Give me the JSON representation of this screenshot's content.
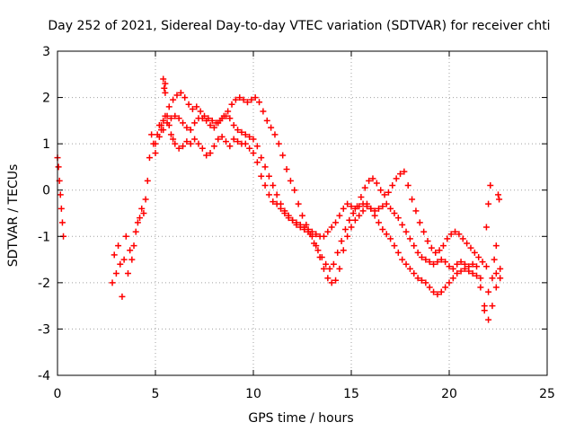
{
  "chart_data": {
    "type": "scatter",
    "title": "Day 252 of 2021, Sidereal Day-to-day VTEC variation (SDTVAR) for receiver chti",
    "xlabel": "GPS time / hours",
    "ylabel": "SDTVAR / TECUs",
    "xlim": [
      0,
      25
    ],
    "ylim": [
      -4,
      3
    ],
    "xticks": [
      0,
      5,
      10,
      15,
      20,
      25
    ],
    "yticks": [
      -4,
      -3,
      -2,
      -1,
      0,
      1,
      2,
      3
    ],
    "grid": true,
    "marker": "+",
    "colors": {
      "points": "#ff0000",
      "grid": "#a0a0a0",
      "axis": "#000000"
    },
    "series": [
      {
        "name": "chti",
        "x": [
          0.0,
          0.05,
          0.1,
          0.15,
          0.2,
          0.25,
          0.3,
          2.8,
          2.9,
          3.0,
          3.1,
          3.2,
          3.3,
          3.4,
          3.5,
          3.6,
          3.7,
          3.8,
          3.9,
          4.0,
          4.1,
          4.2,
          4.3,
          4.4,
          4.5,
          4.6,
          4.7,
          4.8,
          4.9,
          5.0,
          5.1,
          5.2,
          5.3,
          5.4,
          5.5,
          5.6,
          5.7,
          5.8,
          5.9,
          6.0,
          6.2,
          6.4,
          6.6,
          6.8,
          7.0,
          7.2,
          7.4,
          7.6,
          7.8,
          8.0,
          8.2,
          8.4,
          8.6,
          8.8,
          9.0,
          9.2,
          9.4,
          9.6,
          9.8,
          10.0,
          10.2,
          10.4,
          10.6,
          10.8,
          11.0,
          11.2,
          11.4,
          11.6,
          11.8,
          12.0,
          12.2,
          12.4,
          12.6,
          12.8,
          13.0,
          13.2,
          13.4,
          13.6,
          13.8,
          14.0,
          14.2,
          14.4,
          14.6,
          14.8,
          15.0,
          15.2,
          15.4,
          15.6,
          15.8,
          16.0,
          16.2,
          16.4,
          16.6,
          16.8,
          17.0,
          17.2,
          17.4,
          17.6,
          17.8,
          18.0,
          18.2,
          18.4,
          18.6,
          18.8,
          19.0,
          19.2,
          19.4,
          19.6,
          19.8,
          20.0,
          20.2,
          20.4,
          20.6,
          20.8,
          21.0,
          21.2,
          21.4,
          21.6,
          21.8,
          22.0,
          22.2,
          22.4,
          22.6,
          5.0,
          5.2,
          5.4,
          5.6,
          5.8,
          6.0,
          6.2,
          6.4,
          6.6,
          6.8,
          7.0,
          7.2,
          7.4,
          7.6,
          7.8,
          8.0,
          8.2,
          8.4,
          8.6,
          8.8,
          9.0,
          9.2,
          9.4,
          9.6,
          9.8,
          10.0,
          10.2,
          10.4,
          10.6,
          10.8,
          11.0,
          11.2,
          11.4,
          11.6,
          11.8,
          12.0,
          12.2,
          12.4,
          12.6,
          12.8,
          13.0,
          13.2,
          13.4,
          13.6,
          13.8,
          14.0,
          14.2,
          14.4,
          14.6,
          14.8,
          15.0,
          15.2,
          15.4,
          15.6,
          15.8,
          16.0,
          16.2,
          16.4,
          16.6,
          16.8,
          17.0,
          17.2,
          17.4,
          17.6,
          17.8,
          18.0,
          18.2,
          18.4,
          18.6,
          18.8,
          19.0,
          19.2,
          19.4,
          19.6,
          19.8,
          20.0,
          20.2,
          20.4,
          20.6,
          20.8,
          21.0,
          21.2,
          21.4,
          21.6,
          21.8,
          22.0,
          22.2,
          22.4,
          22.6,
          5.3,
          5.5,
          5.7,
          5.9,
          6.1,
          6.3,
          6.5,
          6.7,
          6.9,
          7.1,
          7.3,
          7.5,
          7.7,
          7.9,
          8.1,
          8.3,
          8.5,
          8.7,
          8.9,
          9.1,
          9.3,
          9.5,
          9.7,
          9.9,
          10.1,
          10.3,
          10.5,
          10.7,
          10.9,
          11.1,
          11.3,
          11.5,
          11.7,
          11.9,
          12.1,
          12.3,
          12.5,
          12.7,
          12.9,
          13.1,
          13.3,
          13.5,
          13.7,
          13.9,
          14.1,
          14.3,
          14.5,
          14.7,
          14.9,
          15.1,
          15.3,
          15.5,
          15.7,
          15.9,
          16.1,
          16.3,
          16.5,
          16.7,
          16.9,
          17.1,
          17.3,
          17.5,
          17.7,
          17.9,
          18.1,
          18.3,
          18.5,
          18.7,
          18.9,
          19.1,
          19.3,
          19.5,
          19.7,
          19.9,
          20.1,
          20.3,
          20.5,
          20.7,
          20.9,
          21.1,
          21.3,
          21.5,
          21.7,
          21.9,
          5.4,
          5.45,
          5.5,
          21.9,
          22.0,
          22.1,
          22.3,
          22.4,
          22.5,
          22.55
        ],
        "y": [
          0.7,
          0.5,
          0.2,
          -0.1,
          -0.4,
          -0.7,
          -1.0,
          -2.0,
          -1.4,
          -1.8,
          -1.2,
          -1.6,
          -2.3,
          -1.5,
          -1.0,
          -1.8,
          -1.3,
          -1.5,
          -1.2,
          -0.9,
          -0.7,
          -0.6,
          -0.4,
          -0.5,
          -0.2,
          0.2,
          0.7,
          1.2,
          1.0,
          0.8,
          1.2,
          1.4,
          1.3,
          1.5,
          2.3,
          1.6,
          1.4,
          1.2,
          1.1,
          1.0,
          0.9,
          0.95,
          1.05,
          1.0,
          1.1,
          1.0,
          0.9,
          0.75,
          0.8,
          0.95,
          1.1,
          1.15,
          1.05,
          0.95,
          1.1,
          1.05,
          1.0,
          1.0,
          0.9,
          0.8,
          0.6,
          0.3,
          0.1,
          -0.1,
          -0.25,
          -0.3,
          -0.4,
          -0.5,
          -0.6,
          -0.65,
          -0.7,
          -0.75,
          -0.8,
          -0.85,
          -0.9,
          -0.95,
          -1.0,
          -1.0,
          -0.9,
          -0.8,
          -0.7,
          -0.55,
          -0.4,
          -0.3,
          -0.35,
          -0.4,
          -0.35,
          -0.3,
          -0.3,
          -0.4,
          -0.45,
          -0.4,
          -0.35,
          -0.3,
          -0.4,
          -0.5,
          -0.6,
          -0.75,
          -0.9,
          -1.05,
          -1.2,
          -1.35,
          -1.45,
          -1.5,
          -1.55,
          -1.6,
          -1.55,
          -1.5,
          -1.55,
          -1.65,
          -1.7,
          -1.6,
          -1.55,
          -1.6,
          -1.65,
          -1.6,
          -1.65,
          -1.9,
          -2.5,
          -2.2,
          -1.9,
          -1.8,
          -1.7,
          1.0,
          1.15,
          1.3,
          1.45,
          1.55,
          1.6,
          1.55,
          1.45,
          1.35,
          1.3,
          1.45,
          1.55,
          1.55,
          1.5,
          1.4,
          1.35,
          1.45,
          1.55,
          1.6,
          1.55,
          1.4,
          1.3,
          1.25,
          1.2,
          1.15,
          1.1,
          0.95,
          0.7,
          0.5,
          0.3,
          0.1,
          -0.1,
          -0.3,
          -0.45,
          -0.55,
          -0.65,
          -0.75,
          -0.8,
          -0.85,
          -0.9,
          -1.0,
          -1.2,
          -1.45,
          -1.7,
          -1.9,
          -2.0,
          -1.95,
          -1.7,
          -1.3,
          -1.0,
          -0.8,
          -0.65,
          -0.55,
          -0.45,
          -0.35,
          -0.4,
          -0.55,
          -0.7,
          -0.85,
          -0.95,
          -1.05,
          -1.2,
          -1.35,
          -1.5,
          -1.6,
          -1.7,
          -1.8,
          -1.9,
          -1.95,
          -2.0,
          -2.1,
          -2.2,
          -2.25,
          -2.2,
          -2.1,
          -2.0,
          -1.9,
          -1.8,
          -1.75,
          -1.7,
          -1.75,
          -1.8,
          -1.85,
          -2.1,
          -2.6,
          -2.8,
          -2.5,
          -2.1,
          -1.9,
          1.4,
          1.6,
          1.8,
          1.95,
          2.05,
          2.1,
          2.0,
          1.85,
          1.75,
          1.8,
          1.7,
          1.6,
          1.55,
          1.5,
          1.45,
          1.5,
          1.6,
          1.7,
          1.85,
          1.95,
          2.0,
          1.95,
          1.9,
          1.95,
          2.0,
          1.9,
          1.7,
          1.5,
          1.35,
          1.2,
          1.0,
          0.75,
          0.45,
          0.2,
          0.0,
          -0.3,
          -0.55,
          -0.75,
          -0.95,
          -1.15,
          -1.3,
          -1.45,
          -1.6,
          -1.7,
          -1.6,
          -1.35,
          -1.1,
          -0.85,
          -0.65,
          -0.5,
          -0.35,
          -0.15,
          0.05,
          0.2,
          0.25,
          0.15,
          0.0,
          -0.1,
          -0.05,
          0.1,
          0.25,
          0.35,
          0.4,
          0.1,
          -0.2,
          -0.45,
          -0.7,
          -0.9,
          -1.1,
          -1.25,
          -1.35,
          -1.3,
          -1.2,
          -1.05,
          -0.95,
          -0.9,
          -0.95,
          -1.05,
          -1.15,
          -1.25,
          -1.35,
          -1.45,
          -1.55,
          -1.65,
          2.4,
          2.2,
          2.1,
          -0.8,
          -0.3,
          0.1,
          -1.5,
          -1.2,
          -0.1,
          -0.2
        ]
      }
    ]
  }
}
